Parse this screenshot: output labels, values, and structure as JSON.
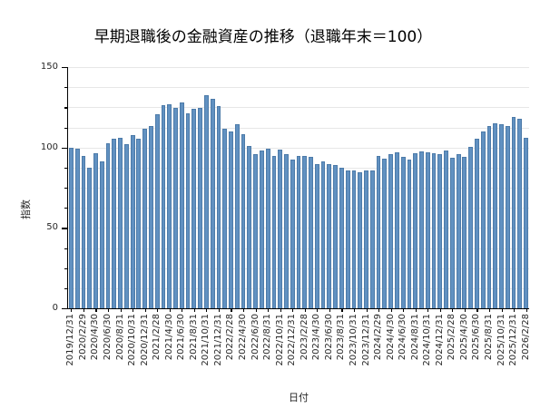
{
  "chart_data": {
    "type": "bar",
    "title": "早期退職後の金融資産の推移（退職年末＝100）",
    "xlabel": "日付",
    "ylabel": "指数",
    "ylim": [
      0,
      150
    ],
    "yticks": [
      0,
      50,
      100,
      150
    ],
    "y_minor_step": 12.5,
    "grid": true,
    "legend": "none",
    "bar_color": "#6191c1",
    "bar_edge_color": "#4d7ba9",
    "xtick_label_every": 2,
    "x": [
      "2019/12/31",
      "2020/1/31",
      "2020/2/29",
      "2020/3/31",
      "2020/4/30",
      "2020/5/31",
      "2020/6/30",
      "2020/7/31",
      "2020/8/31",
      "2020/9/30",
      "2020/10/31",
      "2020/11/30",
      "2020/12/31",
      "2021/1/31",
      "2021/2/28",
      "2021/3/31",
      "2021/4/30",
      "2021/5/31",
      "2021/6/30",
      "2021/7/31",
      "2021/8/31",
      "2021/9/30",
      "2021/10/31",
      "2021/11/30",
      "2021/12/31",
      "2022/1/31",
      "2022/2/28",
      "2022/3/31",
      "2022/4/30",
      "2022/5/31",
      "2022/6/30",
      "2022/7/31",
      "2022/8/31",
      "2022/9/30",
      "2022/10/31",
      "2022/11/30",
      "2022/12/31",
      "2023/1/31",
      "2023/2/28",
      "2023/3/31",
      "2023/4/30",
      "2023/5/31",
      "2023/6/30",
      "2023/7/31",
      "2023/8/31",
      "2023/9/30",
      "2023/10/31",
      "2023/11/30",
      "2023/12/31",
      "2024/1/31",
      "2024/2/29",
      "2024/3/31",
      "2024/4/30",
      "2024/5/31",
      "2024/6/30",
      "2024/7/31",
      "2024/8/31",
      "2024/9/30",
      "2024/10/31",
      "2024/11/30",
      "2024/12/31",
      "2025/1/31",
      "2025/2/28",
      "2025/3/31",
      "2025/4/30",
      "2025/5/31",
      "2025/6/30",
      "2025/7/31",
      "2025/8/31",
      "2025/9/30",
      "2025/10/31",
      "2025/11/30",
      "2025/12/31",
      "2026/1/31",
      "2026/2/28"
    ],
    "values": [
      100,
      99,
      95,
      87.5,
      96.5,
      91.5,
      102.5,
      105.5,
      106,
      102,
      107.5,
      105.5,
      111.5,
      113.5,
      120.5,
      126.5,
      127,
      124.5,
      128,
      121,
      124,
      124.5,
      132.5,
      130,
      126,
      111.5,
      110,
      114.5,
      108.5,
      101,
      96,
      98,
      99,
      94.5,
      98.5,
      96,
      92.5,
      95,
      94.5,
      94,
      89.5,
      91.5,
      89.5,
      89,
      87.5,
      86,
      85.5,
      84.5,
      85.5,
      86,
      94.5,
      93,
      96,
      97,
      94,
      92.5,
      96.5,
      97.5,
      97,
      96.5,
      96,
      98,
      93.5,
      96,
      94,
      100.5,
      105.5,
      110,
      113.5,
      115,
      114.5,
      113.5,
      119,
      118,
      106
    ]
  }
}
